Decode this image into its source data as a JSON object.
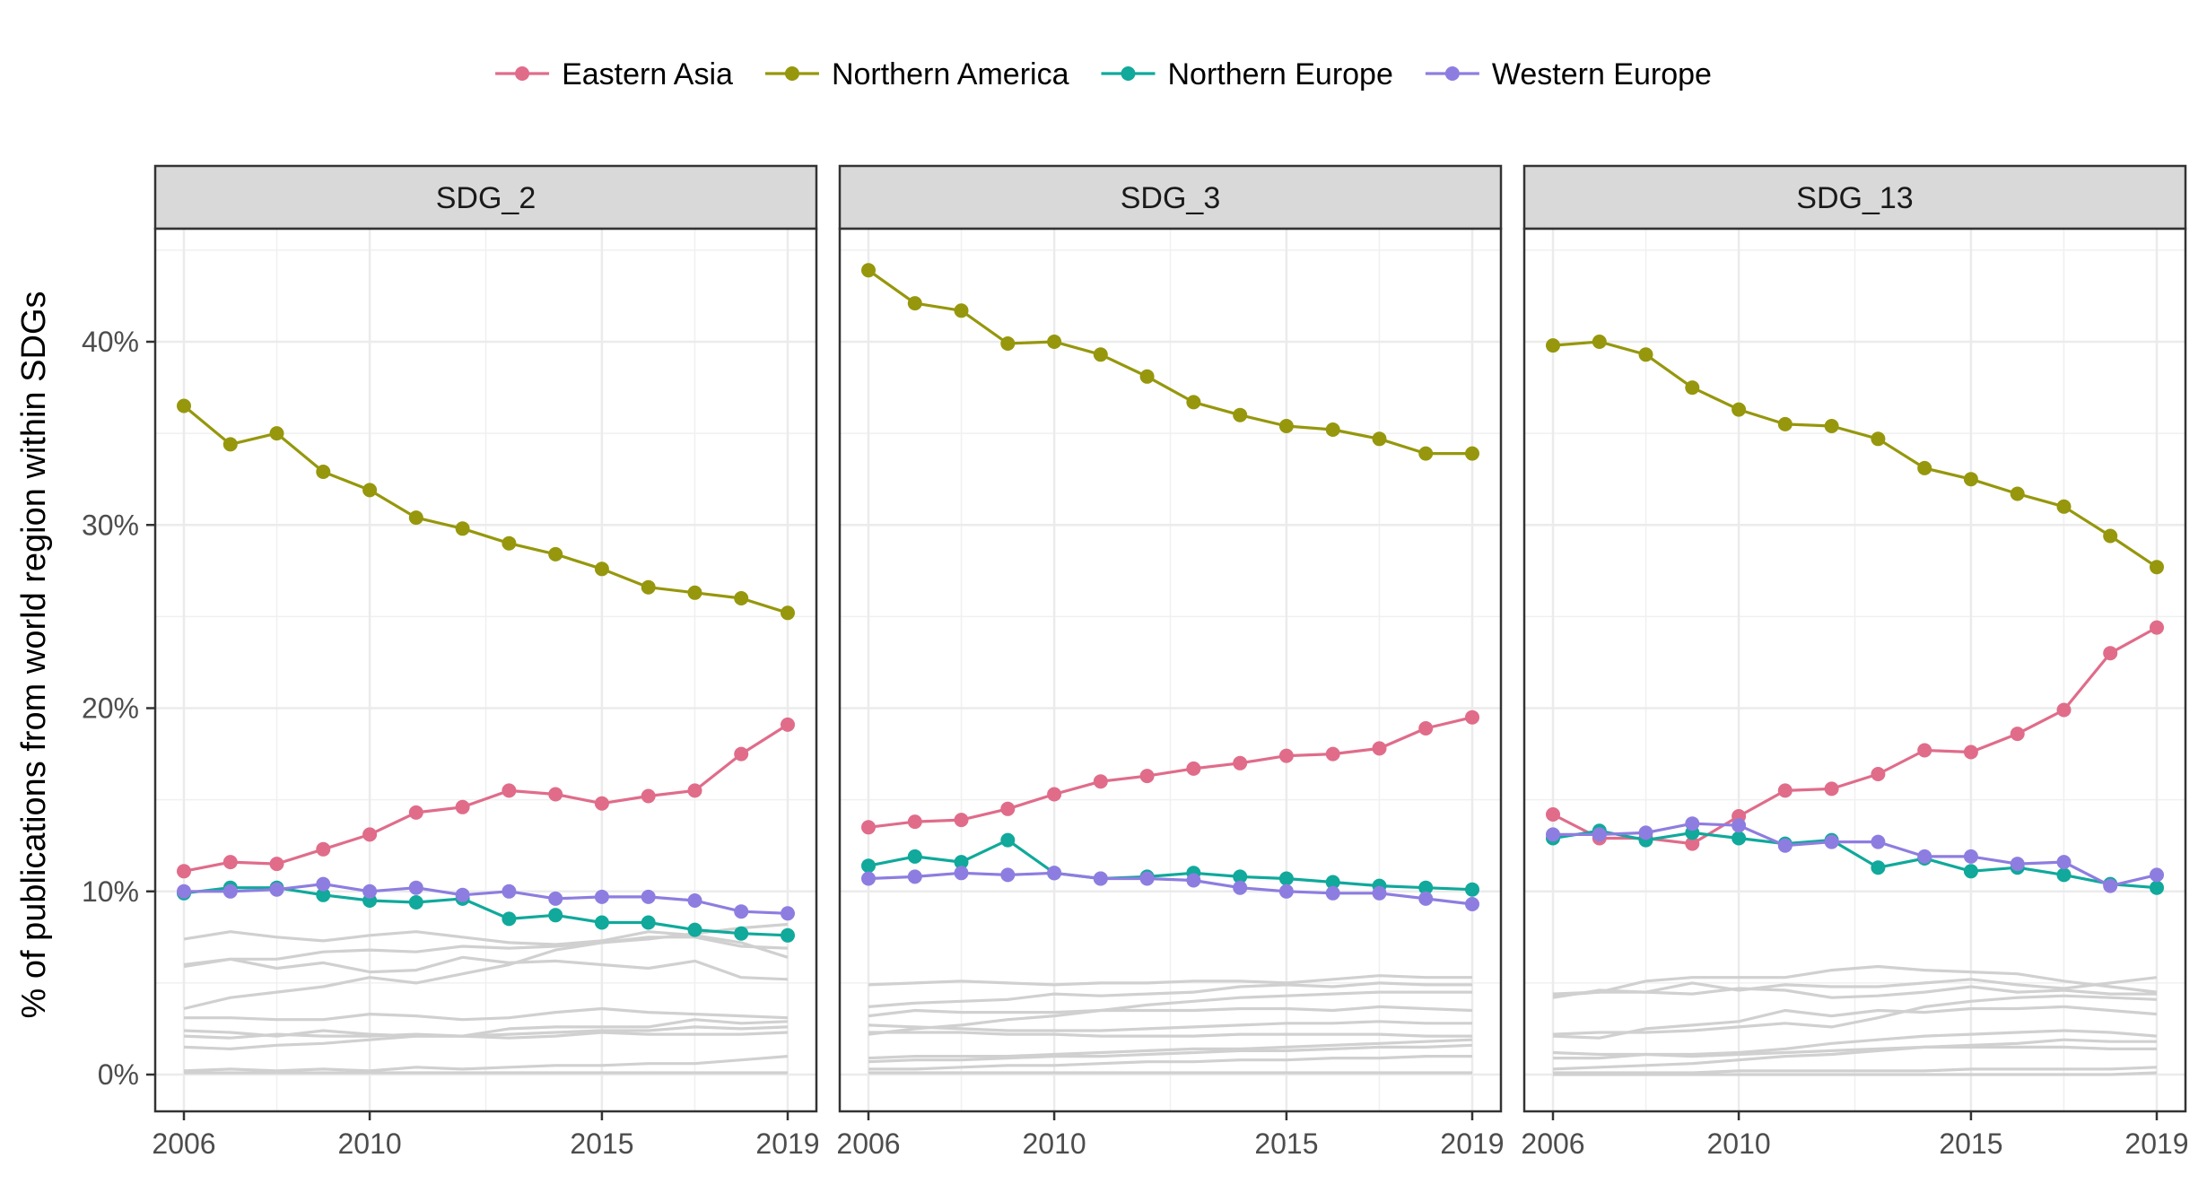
{
  "chart_data": {
    "type": "line",
    "facets": [
      "SDG_2",
      "SDG_3",
      "SDG_13"
    ],
    "x": [
      2006,
      2007,
      2008,
      2009,
      2010,
      2011,
      2012,
      2013,
      2014,
      2015,
      2016,
      2017,
      2018,
      2019
    ],
    "x_ticks": [
      "2006",
      "2010",
      "2015",
      "2019"
    ],
    "ylabel": "% of publications from world region within SDGs",
    "y_ticks": [
      "0%",
      "10%",
      "20%",
      "30%",
      "40%"
    ],
    "ylim": [
      0,
      46
    ],
    "grid": true,
    "legend": {
      "position": "top"
    },
    "series": [
      {
        "name": "Eastern Asia",
        "color": "#E06C8A"
      },
      {
        "name": "Northern America",
        "color": "#96970C"
      },
      {
        "name": "Northern Europe",
        "color": "#10A99B"
      },
      {
        "name": "Western Europe",
        "color": "#8E7DE0"
      }
    ],
    "background_series_color": "#D0D0D0",
    "panels": [
      {
        "facet": "SDG_2",
        "highlighted": {
          "Eastern Asia": [
            11.1,
            11.6,
            11.5,
            12.3,
            13.1,
            14.3,
            14.6,
            15.5,
            15.3,
            14.8,
            15.2,
            15.5,
            17.5,
            19.1
          ],
          "Northern America": [
            36.5,
            34.4,
            35.0,
            32.9,
            31.9,
            30.4,
            29.8,
            29.0,
            28.4,
            27.6,
            26.6,
            26.3,
            26.0,
            25.2
          ],
          "Northern Europe": [
            9.9,
            10.2,
            10.2,
            9.8,
            9.5,
            9.4,
            9.6,
            8.5,
            8.7,
            8.3,
            8.3,
            7.9,
            7.7,
            7.6
          ],
          "Western Europe": [
            10.0,
            10.0,
            10.1,
            10.4,
            10.0,
            10.2,
            9.8,
            10.0,
            9.6,
            9.7,
            9.7,
            9.5,
            8.9,
            8.8
          ]
        },
        "others": [
          [
            7.4,
            7.8,
            7.5,
            7.3,
            7.6,
            7.8,
            7.5,
            7.2,
            7.1,
            7.3,
            7.8,
            7.6,
            7.2,
            6.4
          ],
          [
            6.0,
            6.3,
            6.3,
            6.7,
            6.8,
            6.7,
            7.0,
            6.9,
            7.0,
            7.2,
            7.4,
            7.7,
            8.0,
            8.2
          ],
          [
            5.9,
            6.3,
            5.8,
            6.1,
            5.6,
            5.7,
            6.4,
            6.1,
            6.2,
            6.0,
            5.8,
            6.2,
            5.3,
            5.2
          ],
          [
            3.6,
            4.2,
            4.5,
            4.8,
            5.3,
            5.0,
            5.5,
            6.0,
            6.8,
            7.2,
            7.5,
            7.5,
            7.0,
            6.9
          ],
          [
            3.1,
            3.1,
            3.0,
            3.0,
            3.3,
            3.2,
            3.0,
            3.1,
            3.4,
            3.6,
            3.4,
            3.3,
            3.2,
            3.1
          ],
          [
            2.4,
            2.3,
            2.1,
            2.4,
            2.2,
            2.1,
            2.1,
            2.5,
            2.6,
            2.6,
            2.6,
            3.0,
            2.8,
            2.9
          ],
          [
            2.1,
            2.0,
            2.2,
            2.1,
            2.1,
            2.2,
            2.1,
            2.2,
            2.3,
            2.4,
            2.4,
            2.6,
            2.5,
            2.6
          ],
          [
            1.5,
            1.4,
            1.6,
            1.7,
            1.9,
            2.1,
            2.1,
            2.0,
            2.1,
            2.3,
            2.2,
            2.2,
            2.2,
            2.3
          ],
          [
            0.2,
            0.3,
            0.2,
            0.3,
            0.2,
            0.4,
            0.3,
            0.4,
            0.5,
            0.5,
            0.6,
            0.6,
            0.8,
            1.0
          ],
          [
            0.1,
            0.1,
            0.1,
            0.1,
            0.1,
            0.1,
            0.1,
            0.1,
            0.1,
            0.1,
            0.1,
            0.1,
            0.1,
            0.1
          ]
        ]
      },
      {
        "facet": "SDG_3",
        "highlighted": {
          "Eastern Asia": [
            13.5,
            13.8,
            13.9,
            14.5,
            15.3,
            16.0,
            16.3,
            16.7,
            17.0,
            17.4,
            17.5,
            17.8,
            18.9,
            19.5
          ],
          "Northern America": [
            43.9,
            42.1,
            41.7,
            39.9,
            40.0,
            39.3,
            38.1,
            36.7,
            36.0,
            35.4,
            35.2,
            34.7,
            33.9,
            33.9
          ],
          "Northern Europe": [
            11.4,
            11.9,
            11.6,
            12.8,
            11.0,
            10.7,
            10.8,
            11.0,
            10.8,
            10.7,
            10.5,
            10.3,
            10.2,
            10.1
          ],
          "Western Europe": [
            10.7,
            10.8,
            11.0,
            10.9,
            11.0,
            10.7,
            10.7,
            10.6,
            10.2,
            10.0,
            9.9,
            9.9,
            9.6,
            9.3
          ]
        },
        "others": [
          [
            4.9,
            5.0,
            5.1,
            5.0,
            4.9,
            5.0,
            5.0,
            5.1,
            5.1,
            5.0,
            5.2,
            5.4,
            5.3,
            5.3
          ],
          [
            3.7,
            3.9,
            4.0,
            4.1,
            4.4,
            4.3,
            4.4,
            4.5,
            4.8,
            4.9,
            4.8,
            5.0,
            4.9,
            4.9
          ],
          [
            3.2,
            3.5,
            3.4,
            3.4,
            3.4,
            3.5,
            3.5,
            3.5,
            3.6,
            3.6,
            3.5,
            3.7,
            3.6,
            3.5
          ],
          [
            2.2,
            2.5,
            2.7,
            3.0,
            3.2,
            3.5,
            3.8,
            4.0,
            4.2,
            4.3,
            4.4,
            4.5,
            4.5,
            4.5
          ],
          [
            2.7,
            2.6,
            2.5,
            2.4,
            2.4,
            2.4,
            2.5,
            2.6,
            2.7,
            2.8,
            2.8,
            2.9,
            2.8,
            2.8
          ],
          [
            2.3,
            2.3,
            2.3,
            2.2,
            2.2,
            2.1,
            2.1,
            2.1,
            2.2,
            2.2,
            2.2,
            2.2,
            2.1,
            2.1
          ],
          [
            0.9,
            1.0,
            1.0,
            1.0,
            1.1,
            1.2,
            1.3,
            1.4,
            1.4,
            1.5,
            1.6,
            1.7,
            1.8,
            1.9
          ],
          [
            0.7,
            0.8,
            0.8,
            0.9,
            1.0,
            1.0,
            1.1,
            1.2,
            1.3,
            1.3,
            1.4,
            1.5,
            1.5,
            1.6
          ],
          [
            0.3,
            0.3,
            0.4,
            0.5,
            0.5,
            0.6,
            0.7,
            0.7,
            0.8,
            0.8,
            0.9,
            0.9,
            1.0,
            1.0
          ],
          [
            0.1,
            0.1,
            0.1,
            0.1,
            0.1,
            0.1,
            0.1,
            0.1,
            0.1,
            0.1,
            0.1,
            0.1,
            0.1,
            0.1
          ]
        ]
      },
      {
        "facet": "SDG_13",
        "highlighted": {
          "Eastern Asia": [
            14.2,
            12.9,
            12.9,
            12.6,
            14.1,
            15.5,
            15.6,
            16.4,
            17.7,
            17.6,
            18.6,
            19.9,
            23.0,
            24.4
          ],
          "Northern America": [
            39.8,
            40.0,
            39.3,
            37.5,
            36.3,
            35.5,
            35.4,
            34.7,
            33.1,
            32.5,
            31.7,
            31.0,
            29.4,
            27.7
          ],
          "Northern Europe": [
            12.9,
            13.3,
            12.8,
            13.2,
            12.9,
            12.6,
            12.8,
            11.3,
            11.8,
            11.1,
            11.3,
            10.9,
            10.4,
            10.2
          ],
          "Western Europe": [
            13.1,
            13.1,
            13.2,
            13.7,
            13.6,
            12.5,
            12.7,
            12.7,
            11.9,
            11.9,
            11.5,
            11.6,
            10.3,
            10.9
          ]
        },
        "others": [
          [
            4.3,
            4.5,
            5.1,
            5.3,
            5.3,
            5.3,
            5.7,
            5.9,
            5.7,
            5.6,
            5.5,
            5.1,
            4.8,
            4.5
          ],
          [
            4.4,
            4.5,
            4.5,
            5.0,
            4.6,
            4.9,
            4.8,
            4.8,
            5.0,
            5.2,
            4.9,
            4.7,
            5.0,
            5.3
          ],
          [
            4.2,
            4.6,
            4.5,
            4.4,
            4.7,
            4.6,
            4.2,
            4.3,
            4.5,
            4.8,
            4.5,
            4.6,
            4.4,
            4.4
          ],
          [
            2.2,
            2.3,
            2.3,
            2.4,
            2.6,
            2.8,
            2.6,
            3.1,
            3.7,
            4.0,
            4.2,
            4.3,
            4.2,
            4.1
          ],
          [
            2.1,
            2.0,
            2.5,
            2.7,
            2.9,
            3.5,
            3.2,
            3.5,
            3.4,
            3.6,
            3.6,
            3.7,
            3.5,
            3.3
          ],
          [
            0.9,
            0.9,
            1.1,
            1.1,
            1.2,
            1.4,
            1.7,
            1.9,
            2.1,
            2.2,
            2.3,
            2.4,
            2.3,
            2.1
          ],
          [
            1.2,
            1.1,
            1.1,
            1.0,
            1.1,
            1.2,
            1.3,
            1.4,
            1.5,
            1.5,
            1.5,
            1.5,
            1.4,
            1.4
          ],
          [
            0.3,
            0.4,
            0.5,
            0.6,
            0.8,
            1.0,
            1.1,
            1.3,
            1.5,
            1.6,
            1.7,
            1.9,
            1.8,
            1.8
          ],
          [
            0.1,
            0.1,
            0.1,
            0.1,
            0.2,
            0.2,
            0.2,
            0.2,
            0.2,
            0.3,
            0.3,
            0.3,
            0.3,
            0.4
          ],
          [
            0.0,
            0.0,
            0.0,
            0.0,
            0.0,
            0.0,
            0.0,
            0.0,
            0.0,
            0.0,
            0.0,
            0.0,
            0.0,
            0.1
          ]
        ]
      }
    ]
  }
}
